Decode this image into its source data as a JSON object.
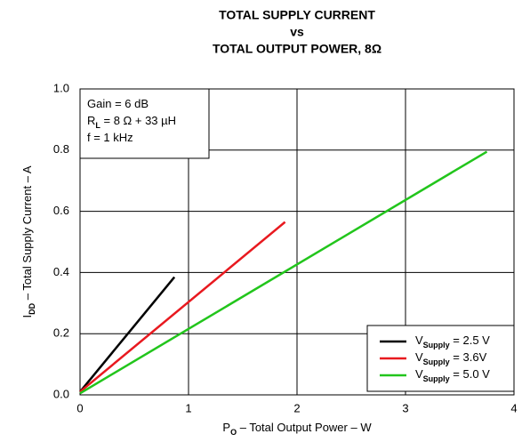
{
  "chart_data": {
    "type": "line",
    "title": [
      "TOTAL SUPPLY CURRENT",
      "vs",
      "TOTAL OUTPUT POWER, 8Ω"
    ],
    "xlabel": [
      "P",
      "O",
      " – Total Output Power – W"
    ],
    "ylabel": [
      "I",
      "DD",
      " – Total Supply Current – A"
    ],
    "annotations": [
      [
        "Gain = 6 dB"
      ],
      [
        "R",
        "L",
        " = 8 Ω + 33 µH"
      ],
      [
        "f = 1 kHz"
      ]
    ],
    "xlim": [
      0,
      4
    ],
    "xticks": [
      0,
      1,
      2,
      3,
      4
    ],
    "ylim": [
      0,
      1
    ],
    "yticks": [
      {
        "value": 0,
        "label": "0.0"
      },
      0.2,
      0.4,
      0.6,
      0.8,
      {
        "value": 1,
        "label": "1.0"
      }
    ],
    "grid": true,
    "legend": "bottom-right",
    "series": [
      {
        "name": [
          "V",
          "Supply",
          " = 2.5 V"
        ],
        "color": "#000000",
        "x": [
          0,
          0.87
        ],
        "values": [
          0.01,
          0.385
        ]
      },
      {
        "name": [
          "V",
          "Supply",
          " = 3.6V"
        ],
        "color": "#e8191f",
        "x": [
          0,
          1.89
        ],
        "values": [
          0.01,
          0.565
        ]
      },
      {
        "name": [
          "V",
          "Supply",
          " = 5.0 V"
        ],
        "color": "#22c51c",
        "x": [
          0,
          3.75
        ],
        "values": [
          0.005,
          0.795
        ]
      }
    ]
  }
}
